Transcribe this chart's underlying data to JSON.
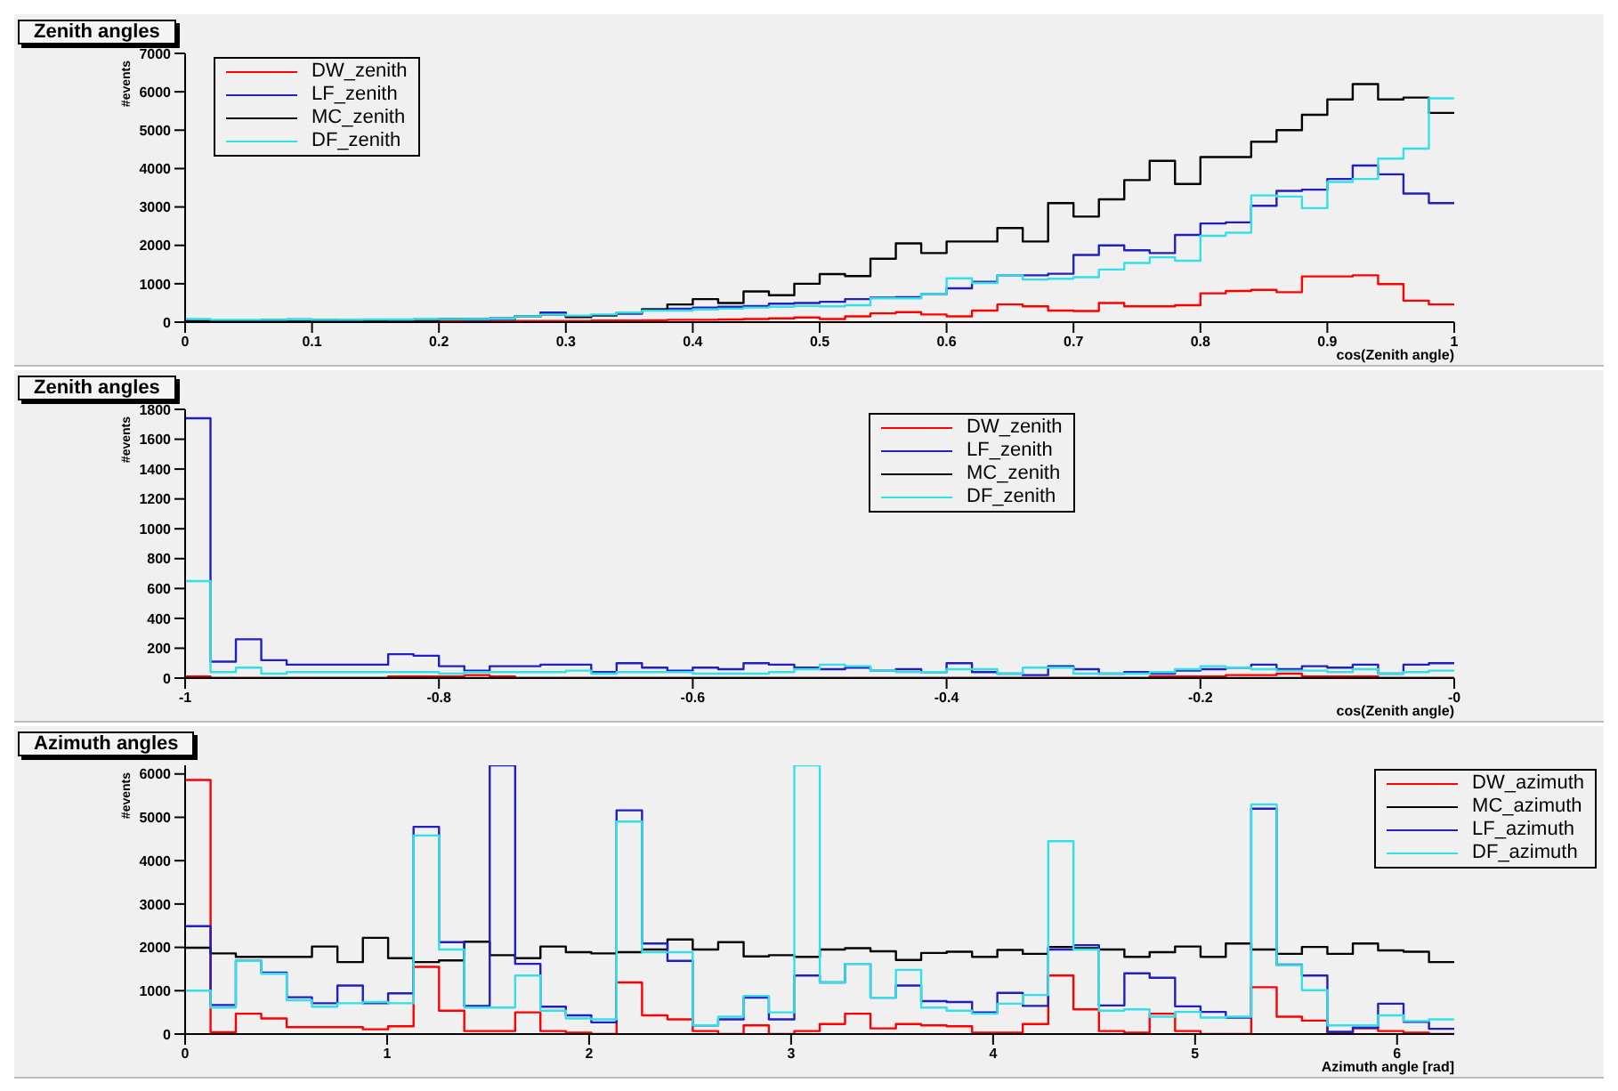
{
  "chart_data": [
    {
      "type": "histogram",
      "title": "Zenith angles",
      "xlabel": "cos(Zenith angle)",
      "ylabel": "#events",
      "legend": "top left",
      "xlim": [
        0,
        1
      ],
      "ylim": [
        0,
        7000
      ],
      "xticks": [
        0,
        0.1,
        0.2,
        0.3,
        0.4,
        0.5,
        0.6,
        0.7,
        0.8,
        0.9,
        1
      ],
      "yticks": [
        0,
        1000,
        2000,
        3000,
        4000,
        5000,
        6000,
        7000
      ],
      "bins": [
        0,
        0.02,
        0.04,
        0.06,
        0.08,
        0.1,
        0.12,
        0.14,
        0.16,
        0.18,
        0.2,
        0.22,
        0.24,
        0.26,
        0.28,
        0.3,
        0.32,
        0.34,
        0.36,
        0.38,
        0.4,
        0.42,
        0.44,
        0.46,
        0.48,
        0.5,
        0.52,
        0.54,
        0.56,
        0.58,
        0.6,
        0.62,
        0.64,
        0.66,
        0.68,
        0.7,
        0.72,
        0.74,
        0.76,
        0.78,
        0.8,
        0.82,
        0.84,
        0.86,
        0.88,
        0.9,
        0.92,
        0.94,
        0.96,
        0.98,
        1
      ],
      "series": [
        {
          "name": "DW_zenith",
          "color": "#ff0000",
          "values": [
            10,
            10,
            10,
            10,
            10,
            10,
            10,
            20,
            20,
            20,
            20,
            20,
            20,
            30,
            30,
            30,
            40,
            40,
            50,
            60,
            60,
            70,
            80,
            100,
            120,
            80,
            150,
            230,
            260,
            200,
            150,
            300,
            460,
            410,
            300,
            290,
            500,
            410,
            410,
            440,
            750,
            810,
            840,
            780,
            1190,
            1190,
            1220,
            990,
            560,
            460
          ]
        },
        {
          "name": "LF_zenith",
          "color": "#2020c0",
          "values": [
            40,
            30,
            40,
            60,
            70,
            60,
            50,
            60,
            60,
            70,
            80,
            60,
            80,
            150,
            250,
            150,
            180,
            220,
            330,
            350,
            380,
            400,
            420,
            480,
            500,
            530,
            600,
            640,
            650,
            730,
            880,
            1050,
            1220,
            1220,
            1260,
            1750,
            2000,
            1870,
            1800,
            2270,
            2570,
            2600,
            3030,
            3420,
            3450,
            3730,
            4080,
            3850,
            3350,
            3100
          ]
        },
        {
          "name": "MC_zenith",
          "color": "#000000",
          "values": [
            20,
            20,
            30,
            30,
            40,
            40,
            50,
            50,
            60,
            60,
            80,
            80,
            100,
            150,
            200,
            130,
            180,
            250,
            330,
            460,
            600,
            500,
            800,
            700,
            1000,
            1250,
            1200,
            1650,
            2050,
            1800,
            2100,
            2100,
            2450,
            2100,
            3100,
            2750,
            3200,
            3700,
            4200,
            3600,
            4300,
            4300,
            4700,
            5000,
            5400,
            5800,
            6200,
            5800,
            5850,
            5450
          ]
        },
        {
          "name": "DF_zenith",
          "color": "#33e0e8",
          "values": [
            80,
            60,
            60,
            60,
            70,
            60,
            60,
            70,
            70,
            80,
            80,
            80,
            100,
            150,
            200,
            170,
            200,
            250,
            300,
            300,
            330,
            350,
            380,
            400,
            420,
            410,
            440,
            620,
            620,
            730,
            1140,
            1020,
            1220,
            1110,
            1130,
            1170,
            1370,
            1540,
            1690,
            1600,
            2250,
            2330,
            3300,
            3270,
            2970,
            3650,
            3730,
            4260,
            4520,
            5830
          ]
        }
      ]
    },
    {
      "type": "histogram",
      "title": "Zenith angles",
      "xlabel": "cos(Zenith angle)",
      "ylabel": "#events",
      "legend": "top",
      "xlim": [
        -1,
        0
      ],
      "ylim": [
        0,
        1800
      ],
      "xticks": [
        -1,
        -0.8,
        -0.6,
        -0.4,
        -0.2,
        {
          "value": 0,
          "label": "-0"
        }
      ],
      "yticks": [
        0,
        200,
        400,
        600,
        800,
        1000,
        1200,
        1400,
        1600,
        1800
      ],
      "bins": [
        -1,
        -0.98,
        -0.96,
        -0.94,
        -0.92,
        -0.9,
        -0.88,
        -0.86,
        -0.84,
        -0.82,
        -0.8,
        -0.78,
        -0.76,
        -0.74,
        -0.72,
        -0.7,
        -0.68,
        -0.66,
        -0.64,
        -0.62,
        -0.6,
        -0.58,
        -0.56,
        -0.54,
        -0.52,
        -0.5,
        -0.48,
        -0.46,
        -0.44,
        -0.42,
        -0.4,
        -0.38,
        -0.36,
        -0.34,
        -0.32,
        -0.3,
        -0.28,
        -0.26,
        -0.24,
        -0.22,
        -0.2,
        -0.18,
        -0.16,
        -0.14,
        -0.12,
        -0.1,
        -0.08,
        -0.06,
        -0.04,
        -0.02,
        0
      ],
      "series": [
        {
          "name": "DW_zenith",
          "color": "#ff0000",
          "values": [
            10,
            0,
            0,
            0,
            0,
            0,
            0,
            0,
            10,
            10,
            10,
            20,
            10,
            0,
            0,
            0,
            0,
            0,
            0,
            0,
            0,
            0,
            0,
            0,
            0,
            0,
            0,
            0,
            0,
            0,
            0,
            0,
            0,
            0,
            0,
            0,
            0,
            0,
            10,
            10,
            10,
            20,
            20,
            30,
            10,
            10,
            10,
            0,
            0,
            0
          ]
        },
        {
          "name": "LF_zenith",
          "color": "#2020c0",
          "values": [
            1740,
            110,
            260,
            120,
            90,
            90,
            90,
            90,
            160,
            150,
            80,
            50,
            80,
            80,
            90,
            90,
            40,
            100,
            70,
            50,
            70,
            60,
            100,
            90,
            70,
            60,
            70,
            50,
            60,
            40,
            100,
            40,
            30,
            20,
            80,
            60,
            30,
            40,
            30,
            50,
            60,
            70,
            90,
            60,
            80,
            70,
            90,
            30,
            90,
            100
          ]
        },
        {
          "name": "MC_zenith",
          "color": "#000000",
          "values": [
            0,
            0,
            0,
            0,
            0,
            0,
            0,
            0,
            0,
            0,
            0,
            0,
            0,
            0,
            0,
            0,
            0,
            0,
            0,
            0,
            0,
            0,
            0,
            0,
            0,
            0,
            0,
            0,
            0,
            0,
            0,
            0,
            0,
            0,
            0,
            0,
            0,
            0,
            0,
            0,
            0,
            0,
            0,
            0,
            0,
            0,
            0,
            0,
            0,
            0
          ]
        },
        {
          "name": "DF_zenith",
          "color": "#33e0e8",
          "values": [
            650,
            40,
            70,
            30,
            40,
            40,
            40,
            40,
            40,
            40,
            30,
            40,
            40,
            40,
            40,
            50,
            30,
            40,
            40,
            40,
            30,
            30,
            30,
            40,
            60,
            90,
            80,
            50,
            40,
            40,
            60,
            60,
            30,
            70,
            70,
            30,
            30,
            30,
            40,
            60,
            80,
            70,
            60,
            50,
            50,
            40,
            60,
            30,
            40,
            50
          ]
        }
      ]
    },
    {
      "type": "histogram",
      "title": "Azimuth angles",
      "xlabel": "Azimuth angle [rad]",
      "ylabel": "#events",
      "legend": "top right",
      "xlim": [
        0,
        6.283
      ],
      "ylim": [
        0,
        6200
      ],
      "xticks": [
        0,
        1,
        2,
        3,
        4,
        5,
        6
      ],
      "yticks": [
        0,
        1000,
        2000,
        3000,
        4000,
        5000,
        6000
      ],
      "bins": [
        0,
        0.126,
        0.251,
        0.377,
        0.503,
        0.628,
        0.754,
        0.88,
        1.005,
        1.131,
        1.257,
        1.382,
        1.508,
        1.634,
        1.759,
        1.885,
        2.011,
        2.136,
        2.262,
        2.388,
        2.513,
        2.639,
        2.765,
        2.89,
        3.016,
        3.142,
        3.267,
        3.393,
        3.519,
        3.644,
        3.77,
        3.896,
        4.021,
        4.147,
        4.273,
        4.398,
        4.524,
        4.65,
        4.775,
        4.901,
        5.027,
        5.152,
        5.278,
        5.404,
        5.529,
        5.655,
        5.781,
        5.906,
        6.032,
        6.158,
        6.283
      ],
      "series": [
        {
          "name": "DW_azimuth",
          "color": "#ff0000",
          "values": [
            5860,
            40,
            470,
            360,
            160,
            160,
            160,
            110,
            180,
            1550,
            540,
            70,
            70,
            500,
            70,
            30,
            0,
            1190,
            430,
            340,
            70,
            0,
            200,
            0,
            70,
            230,
            470,
            130,
            230,
            200,
            180,
            30,
            30,
            230,
            1350,
            570,
            70,
            30,
            470,
            70,
            0,
            0,
            1080,
            400,
            310,
            30,
            130,
            70,
            30,
            0
          ]
        },
        {
          "name": "MC_azimuth",
          "color": "#000000",
          "values": [
            1990,
            1860,
            1780,
            1780,
            1780,
            2020,
            1660,
            2220,
            1750,
            1660,
            1700,
            2130,
            1820,
            1750,
            2020,
            1890,
            1860,
            1890,
            1950,
            2180,
            1950,
            2120,
            1790,
            1820,
            1780,
            1950,
            1980,
            1910,
            1710,
            1870,
            1900,
            1780,
            1940,
            1850,
            2010,
            1980,
            1950,
            1780,
            1890,
            2020,
            1780,
            2090,
            1950,
            1850,
            2010,
            1850,
            2090,
            1930,
            1900,
            1660
          ]
        },
        {
          "name": "LF_azimuth",
          "color": "#2020c0",
          "values": [
            2490,
            670,
            1690,
            1420,
            850,
            710,
            1120,
            710,
            940,
            4780,
            2120,
            650,
            6200,
            1620,
            630,
            430,
            270,
            5160,
            2090,
            1690,
            200,
            340,
            840,
            340,
            1350,
            1190,
            1620,
            840,
            1120,
            760,
            740,
            500,
            950,
            650,
            1950,
            2050,
            660,
            1400,
            1300,
            640,
            510,
            380,
            5200,
            1600,
            1350,
            50,
            150,
            700,
            280,
            120
          ]
        },
        {
          "name": "DF_azimuth",
          "color": "#33e0e8",
          "values": [
            1000,
            610,
            1690,
            1390,
            780,
            630,
            710,
            740,
            710,
            4580,
            1950,
            610,
            610,
            1350,
            540,
            360,
            340,
            4900,
            1890,
            1890,
            200,
            400,
            880,
            500,
            6200,
            1190,
            1620,
            840,
            1480,
            610,
            540,
            470,
            700,
            900,
            4450,
            1950,
            540,
            570,
            400,
            510,
            380,
            400,
            5300,
            1590,
            1010,
            200,
            200,
            430,
            300,
            340
          ]
        }
      ]
    }
  ]
}
